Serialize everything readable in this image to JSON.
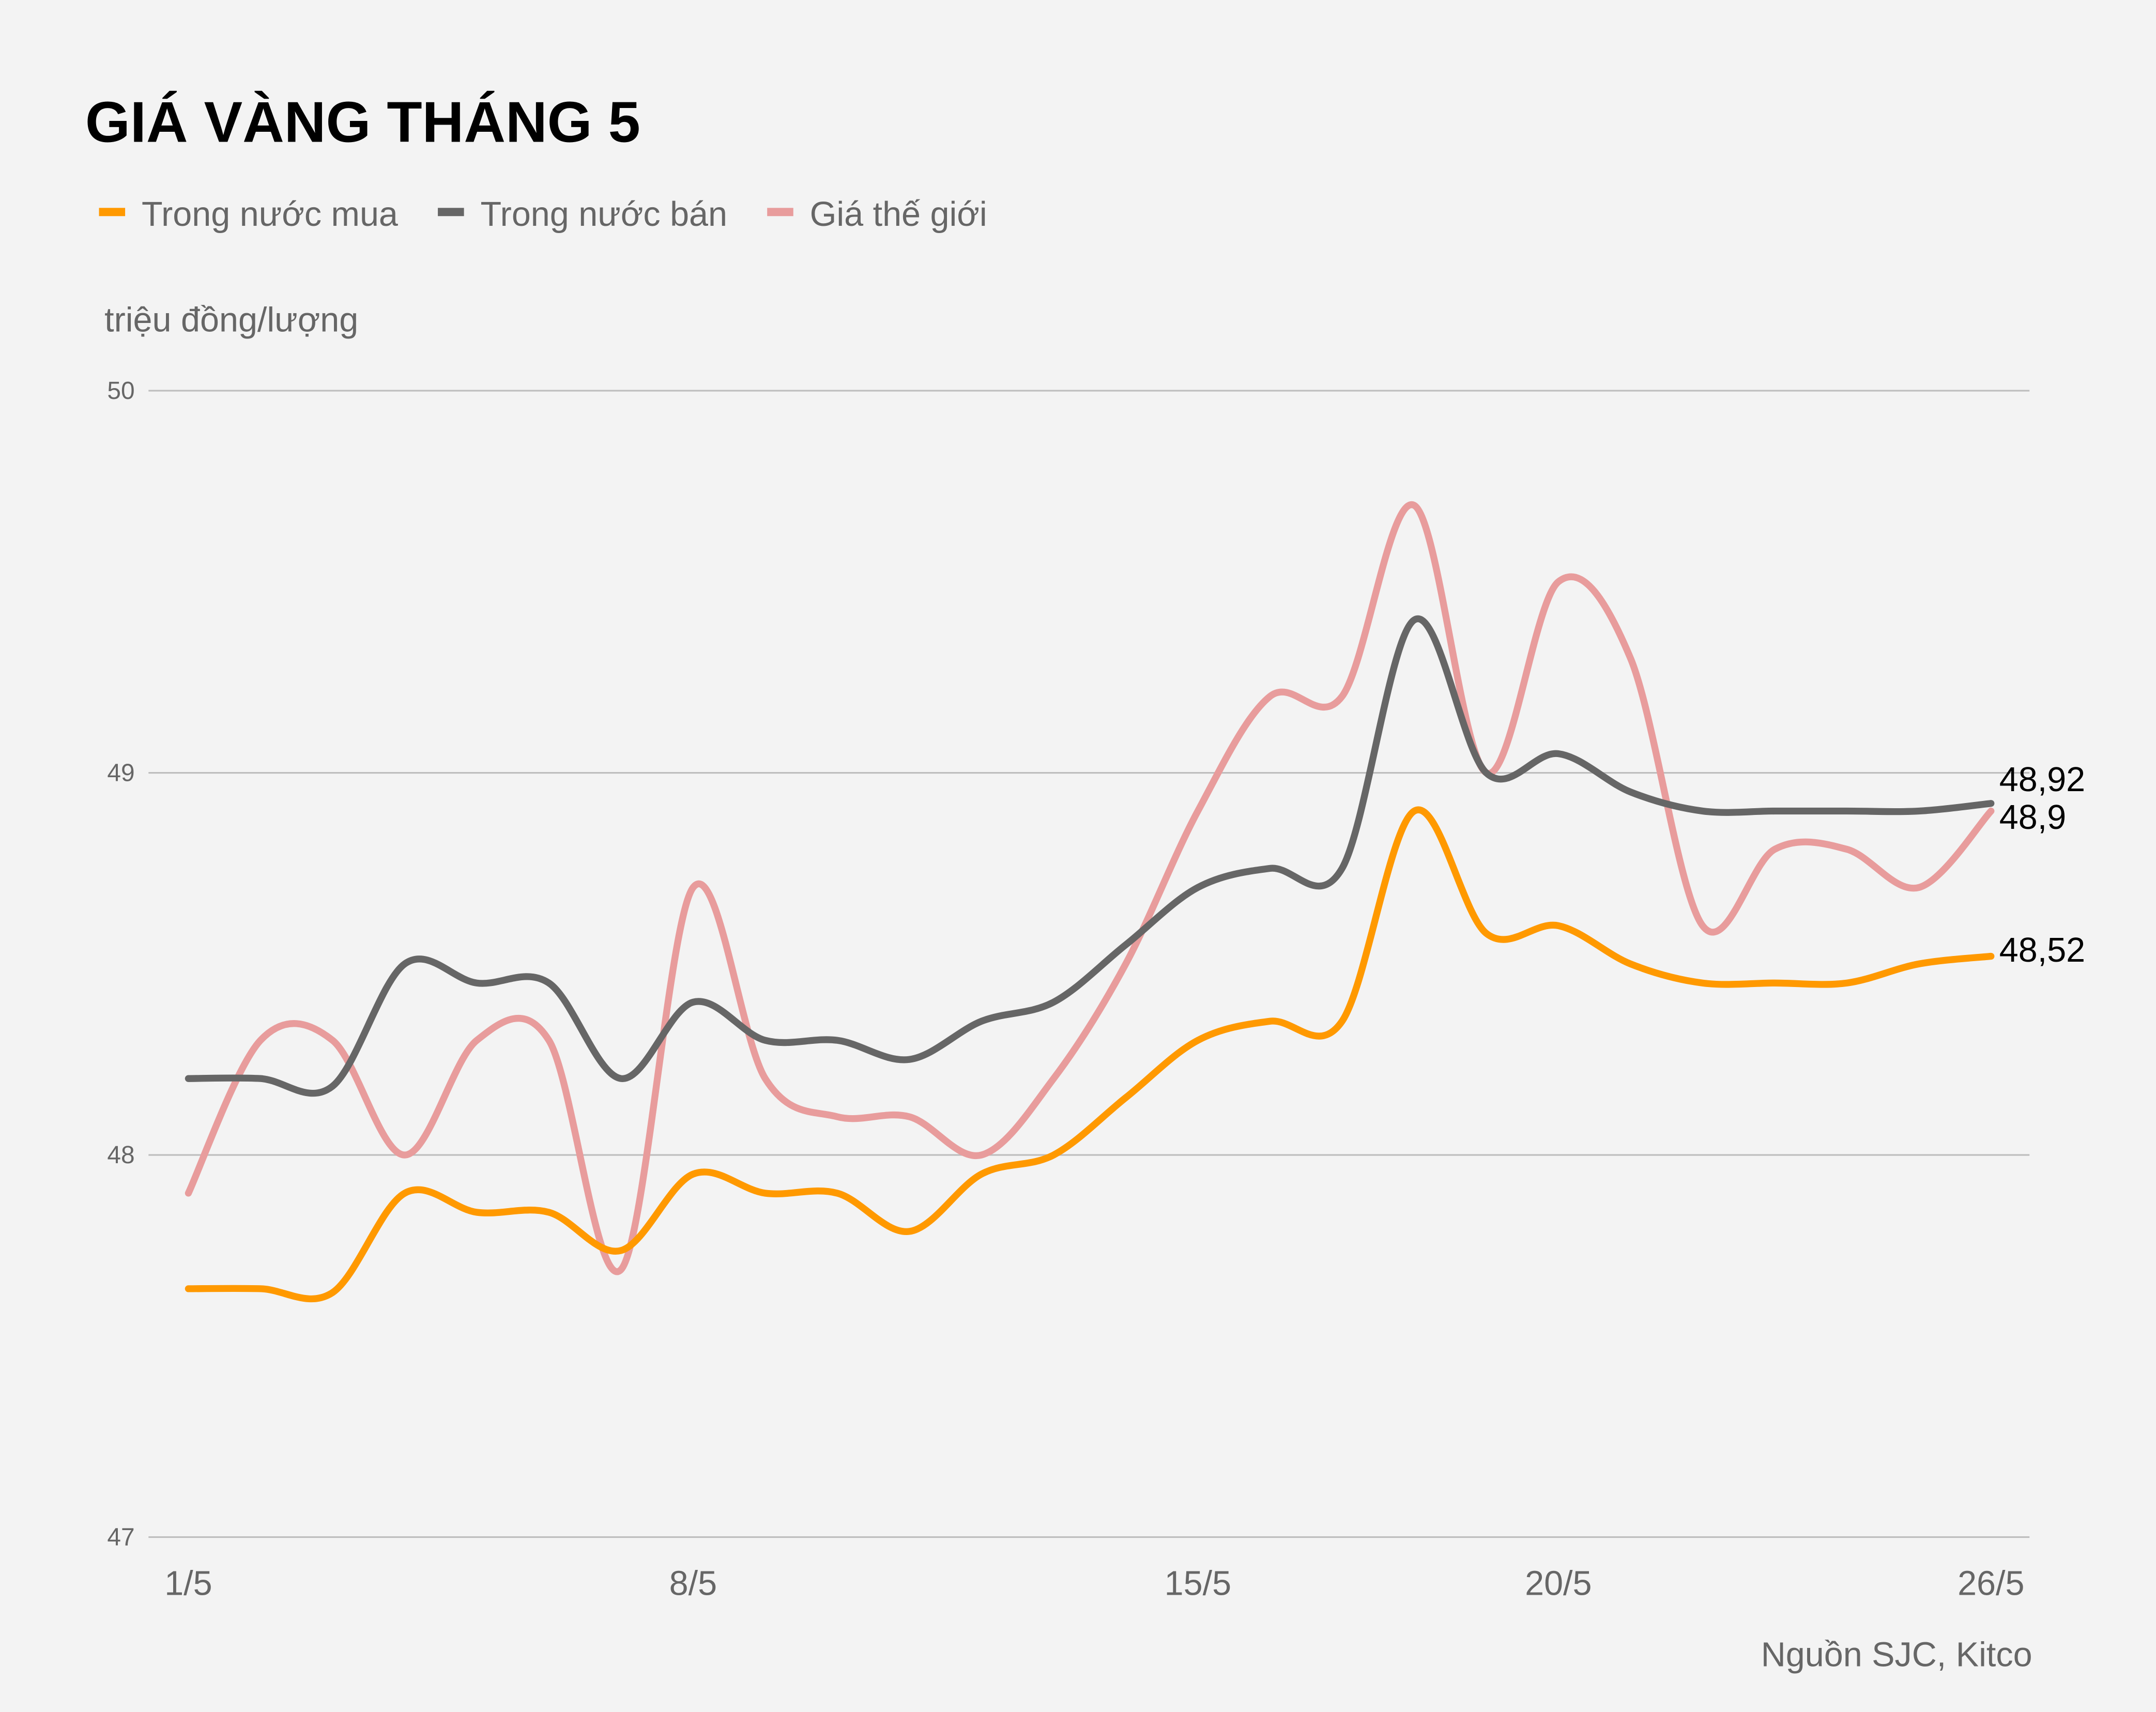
{
  "chart_data": {
    "type": "line",
    "title": "GIÁ VÀNG THÁNG 5",
    "ylabel": "triệu đồng/lượng",
    "source": "Nguồn SJC, Kitco",
    "ylim": [
      47,
      50
    ],
    "yticks": [
      "50",
      "49",
      "48",
      "47"
    ],
    "ytick_values": [
      50,
      49,
      48,
      47
    ],
    "grid": true,
    "legend_position": "top-left",
    "x": [
      "1/5",
      "2/5",
      "3/5",
      "4/5",
      "5/5",
      "6/5",
      "7/5",
      "8/5",
      "9/5",
      "10/5",
      "11/5",
      "12/5",
      "13/5",
      "14/5",
      "15/5",
      "16/5",
      "17/5",
      "18/5",
      "19/5",
      "20/5",
      "21/5",
      "22/5",
      "23/5",
      "24/5",
      "25/5",
      "26/5"
    ],
    "xticks": [
      "1/5",
      "8/5",
      "15/5",
      "20/5",
      "26/5"
    ],
    "xtick_index": [
      0,
      7,
      14,
      19,
      25
    ],
    "series": [
      {
        "name": "Trong nước mua",
        "color": "#ff9900",
        "end_label": "48,52",
        "values": [
          47.65,
          47.65,
          47.64,
          47.9,
          47.85,
          47.85,
          47.75,
          47.95,
          47.9,
          47.9,
          47.8,
          47.95,
          48.0,
          48.15,
          48.3,
          48.35,
          48.35,
          48.9,
          48.58,
          48.6,
          48.5,
          48.45,
          48.45,
          48.45,
          48.5,
          48.52
        ]
      },
      {
        "name": "Trong nước bán",
        "color": "#666666",
        "end_label": "48,92",
        "values": [
          48.2,
          48.2,
          48.18,
          48.5,
          48.45,
          48.45,
          48.2,
          48.4,
          48.3,
          48.3,
          48.25,
          48.35,
          48.4,
          48.55,
          48.7,
          48.75,
          48.75,
          49.4,
          49.0,
          49.05,
          48.95,
          48.9,
          48.9,
          48.9,
          48.9,
          48.92
        ]
      },
      {
        "name": "Giá thế giới",
        "color": "#e89c9c",
        "end_label": "48,9",
        "values": [
          47.9,
          48.3,
          48.3,
          48.0,
          48.3,
          48.3,
          47.7,
          48.7,
          48.2,
          48.1,
          48.1,
          48.0,
          48.2,
          48.5,
          48.9,
          49.2,
          49.2,
          49.7,
          49.0,
          49.5,
          49.3,
          48.6,
          48.8,
          48.8,
          48.7,
          48.9
        ]
      }
    ]
  }
}
